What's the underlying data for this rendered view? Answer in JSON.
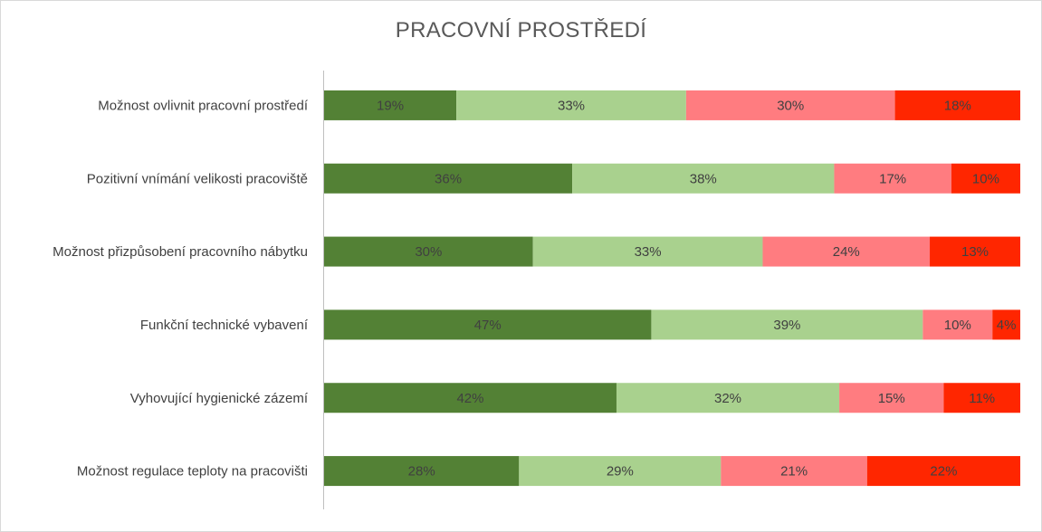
{
  "chart_data": {
    "type": "bar",
    "orientation": "horizontal",
    "stacked": "100%",
    "title": "PRACOVNÍ PROSTŘEDÍ",
    "categories": [
      "Možnost ovlivnit pracovní prostředí",
      "Pozitivní vnímání velikosti pracoviště",
      "Možnost přizpůsobení pracovního nábytku",
      "Funkční technické vybavení",
      "Vyhovující hygienické zázemí",
      "Možnost regulace teploty na pracovišti"
    ],
    "series": [
      {
        "values": [
          19,
          36,
          30,
          47,
          42,
          28
        ],
        "color": "#538135"
      },
      {
        "values": [
          33,
          38,
          33,
          39,
          32,
          29
        ],
        "color": "#a9d18e"
      },
      {
        "values": [
          30,
          17,
          24,
          10,
          15,
          21
        ],
        "color": "#ff7c80"
      },
      {
        "values": [
          18,
          10,
          13,
          4,
          11,
          22
        ],
        "color": "#ff2600"
      }
    ],
    "labels": [
      [
        "19%",
        "33%",
        "30%",
        "18%"
      ],
      [
        "36%",
        "38%",
        "17%",
        "10%"
      ],
      [
        "30%",
        "33%",
        "24%",
        "13%"
      ],
      [
        "47%",
        "39%",
        "10%",
        "4%"
      ],
      [
        "42%",
        "32%",
        "15%",
        "11%"
      ],
      [
        "28%",
        "29%",
        "21%",
        "22%"
      ]
    ],
    "xlim": [
      0,
      100
    ],
    "grid": false,
    "legend": "none"
  }
}
